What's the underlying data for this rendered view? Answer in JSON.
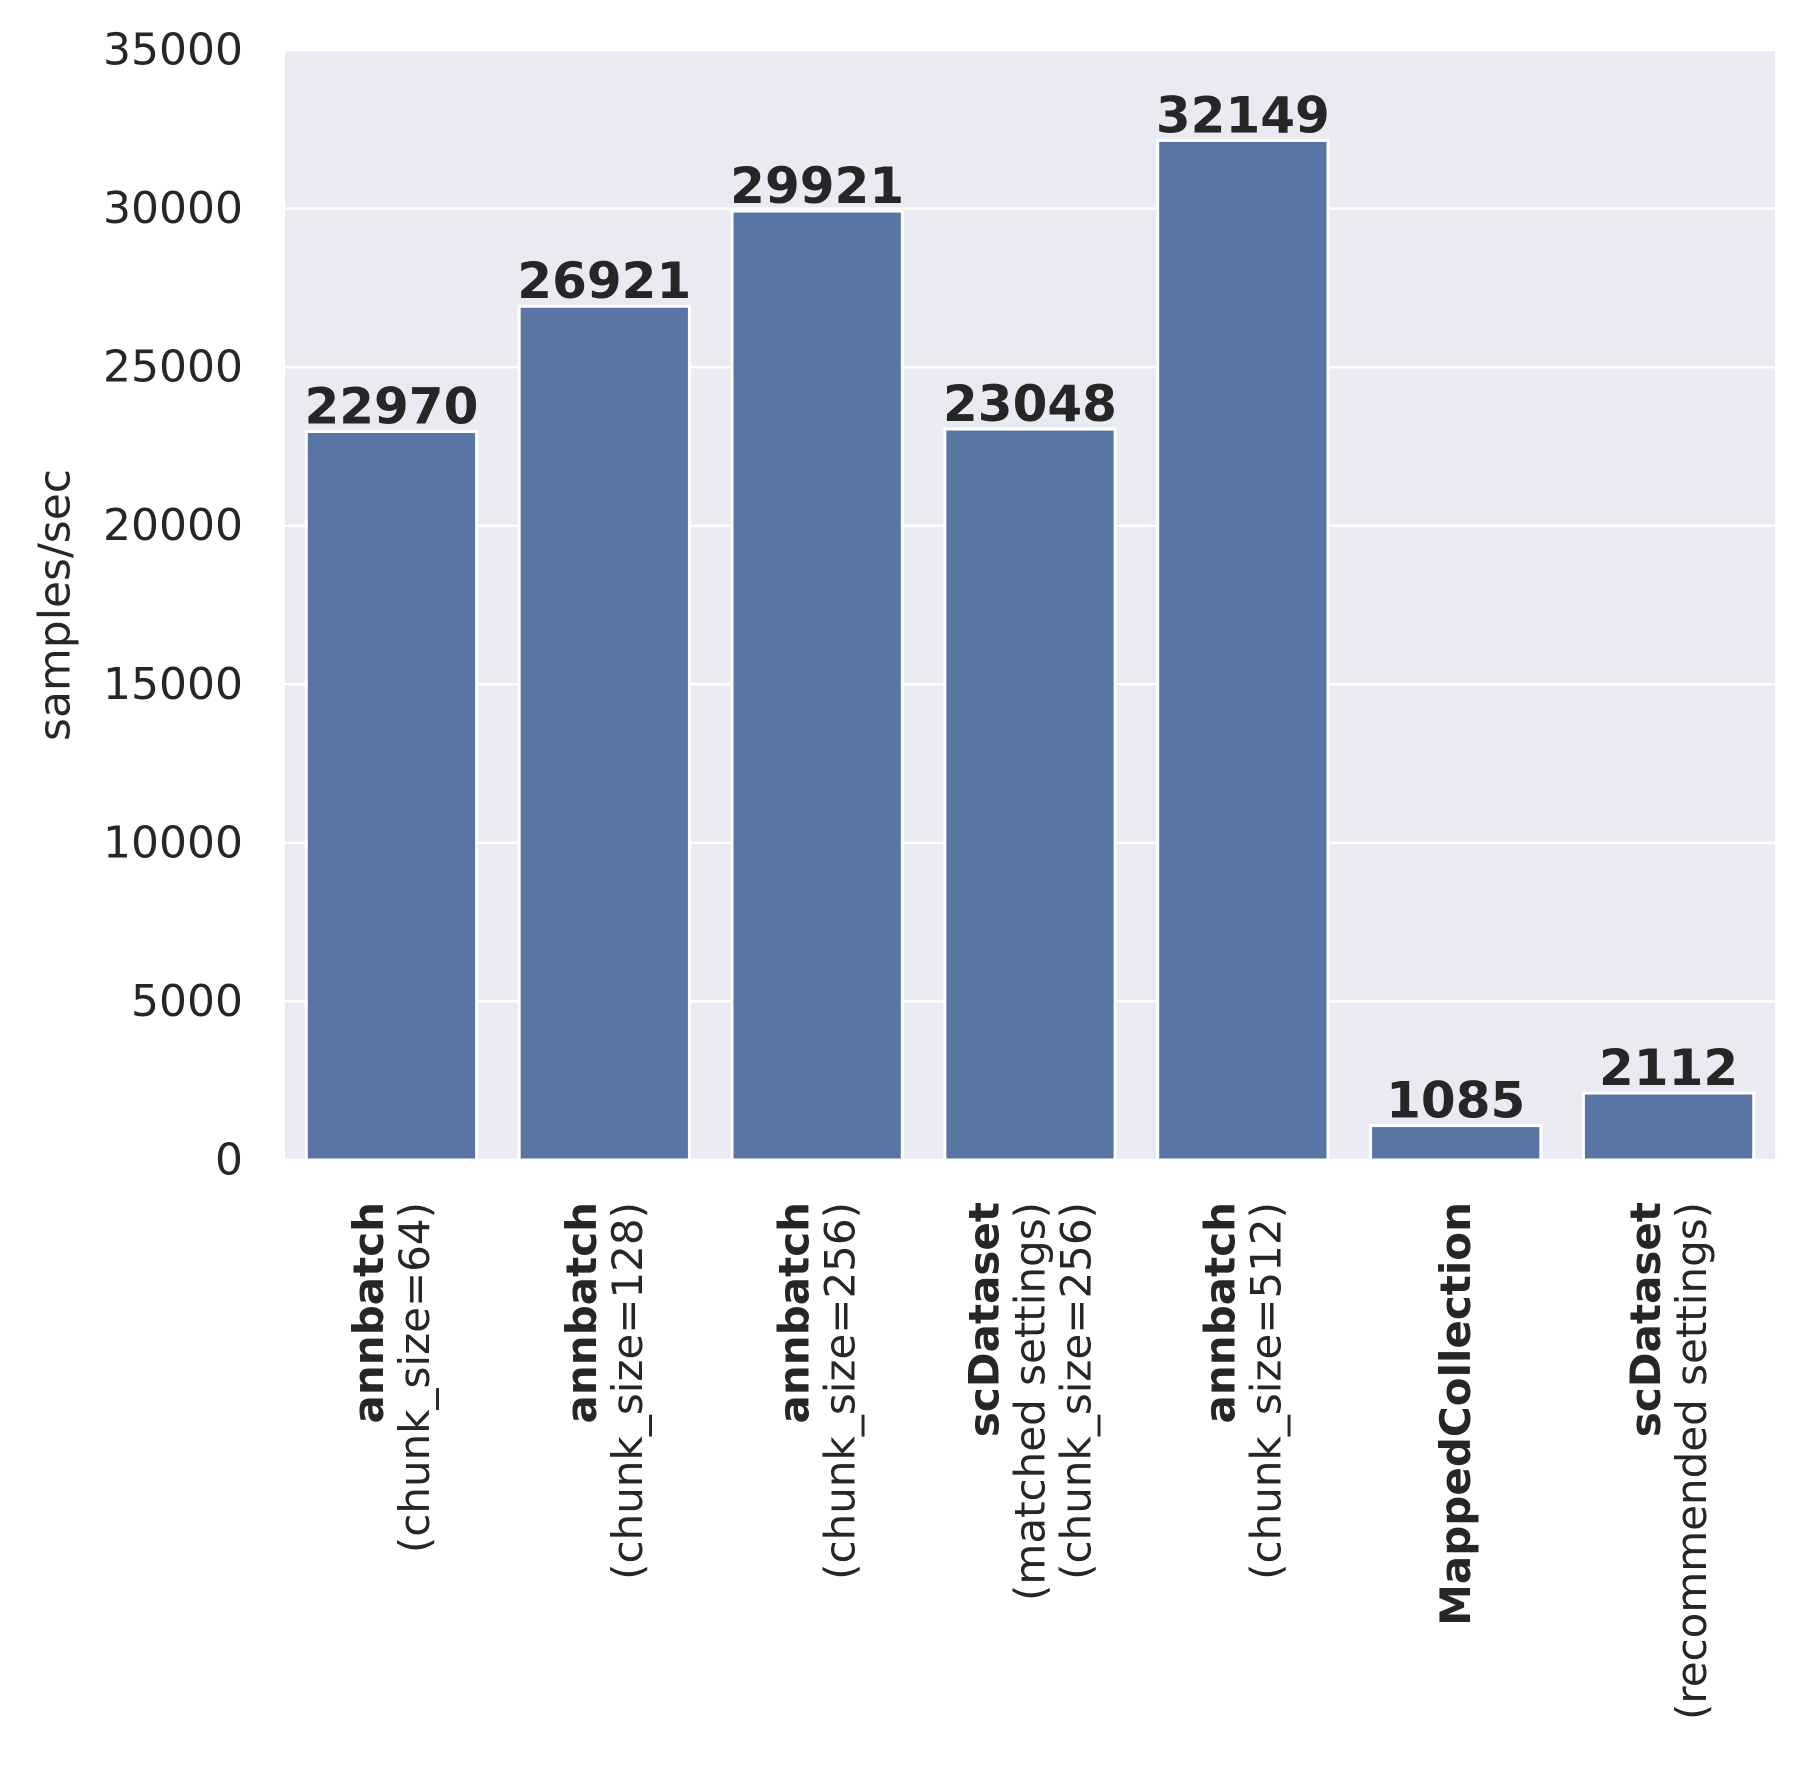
{
  "chart_data": {
    "type": "bar",
    "ylabel": "samples/sec",
    "ylim": [
      0,
      35000
    ],
    "yticks": [
      "0",
      "5000",
      "10000",
      "15000",
      "20000",
      "25000",
      "30000",
      "35000"
    ],
    "grid": true,
    "categories": [
      {
        "name": "annbatch",
        "detail": [
          "(chunk_size=64)"
        ]
      },
      {
        "name": "annbatch",
        "detail": [
          "(chunk_size=128)"
        ]
      },
      {
        "name": "annbatch",
        "detail": [
          "(chunk_size=256)"
        ]
      },
      {
        "name": "scDataset",
        "detail": [
          "(matched settings)",
          "(chunk_size=256)"
        ]
      },
      {
        "name": "annbatch",
        "detail": [
          "(chunk_size=512)"
        ]
      },
      {
        "name": "MappedCollection",
        "detail": []
      },
      {
        "name": "scDataset",
        "detail": [
          "(recommended settings)"
        ]
      }
    ],
    "values": [
      22970,
      26921,
      29921,
      23048,
      32149,
      1085,
      2112
    ],
    "value_labels": [
      "22970",
      "26921",
      "29921",
      "23048",
      "32149",
      "1085",
      "2112"
    ],
    "colors": {
      "bar": "#5975a4",
      "plot_background": "#eaeaf2",
      "grid": "#ffffff",
      "text": "#262626"
    }
  }
}
